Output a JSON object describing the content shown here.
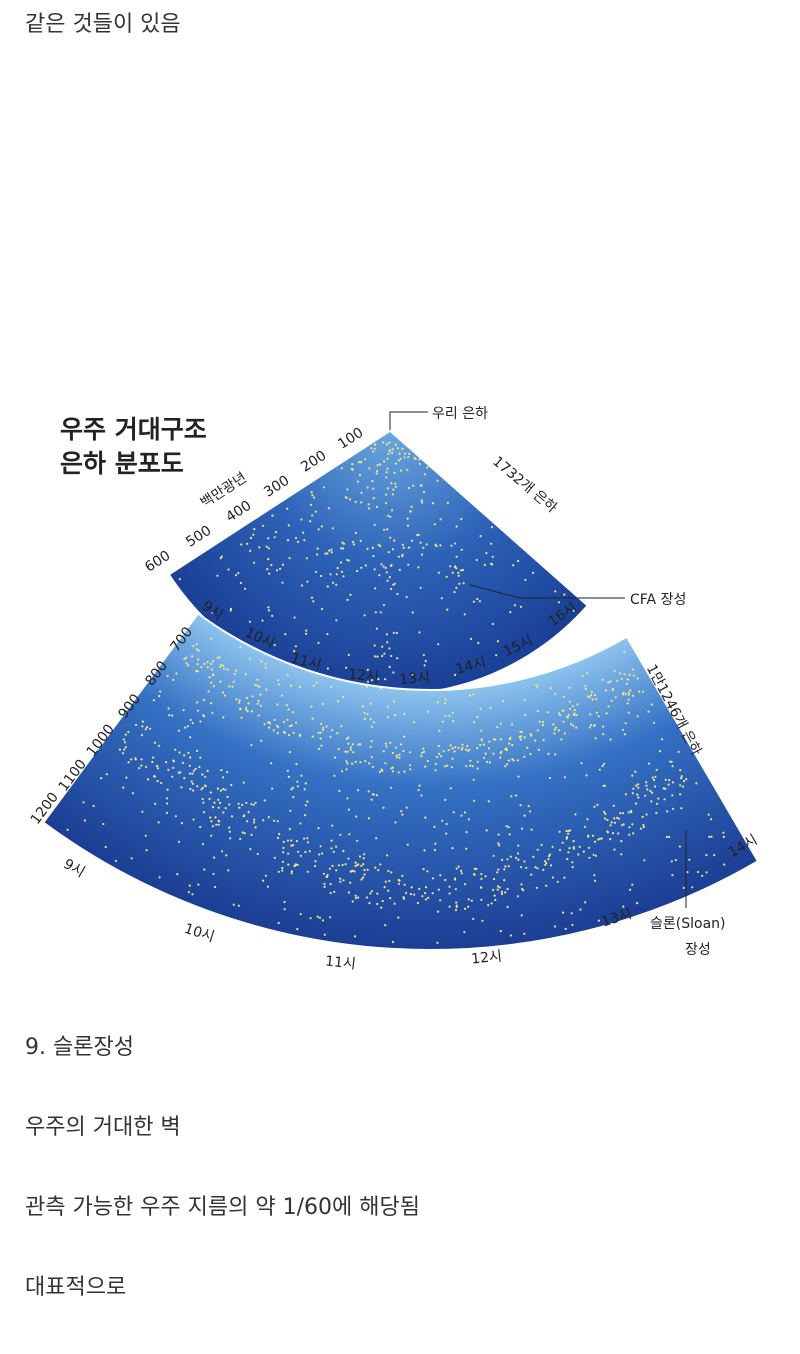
{
  "intro": "같은 것들이 있음",
  "figure": {
    "title_lines": [
      "우주 거대구조",
      "은하 분포도"
    ],
    "milky_way": "우리 은하",
    "upper": {
      "distances": [
        "100",
        "200",
        "300",
        "400",
        "500",
        "600"
      ],
      "unit": "백만광년",
      "count_label": "1732개 은하",
      "wall_label": "CFA 장성",
      "hours": [
        "9시",
        "10시",
        "11시",
        "12시",
        "13시",
        "14시",
        "15시",
        "16시"
      ]
    },
    "lower": {
      "distances": [
        "700",
        "800",
        "900",
        "1000",
        "1100",
        "1200"
      ],
      "count_label": "1만1246개 은하",
      "wall_label_lines": [
        "슬론(Sloan)",
        "장성"
      ],
      "hours": [
        "9시",
        "10시",
        "11시",
        "12시",
        "13시",
        "14시"
      ]
    }
  },
  "paragraphs": [
    "9. 슬론장성",
    "우주의 거대한 벽",
    "관측 가능한 우주 지름의 약 1/60에 해당됨",
    "대표적으로"
  ]
}
